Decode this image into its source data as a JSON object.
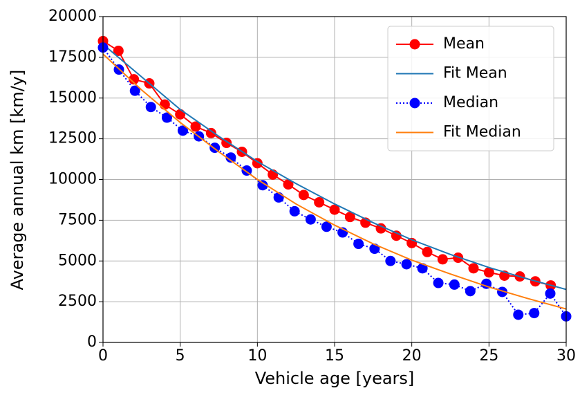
{
  "chart_data": {
    "type": "line",
    "x_label": "Vehicle age [years]",
    "y_label": "Average annual km [km/y]",
    "xlim": [
      0,
      30
    ],
    "ylim": [
      0,
      20000
    ],
    "xticks": [
      0,
      5,
      10,
      15,
      20,
      25,
      30
    ],
    "yticks": [
      0,
      2500,
      5000,
      7500,
      10000,
      12500,
      15000,
      17500,
      20000
    ],
    "grid": true,
    "legend": "upper right",
    "series": [
      {
        "name": "Mean",
        "color": "#ff0000",
        "linestyle": "solid",
        "marker": "circle",
        "x": [
          0,
          1,
          2,
          3,
          4,
          5,
          6,
          7,
          8,
          9,
          10,
          11,
          12,
          13,
          14,
          15,
          16,
          17,
          18,
          19,
          20,
          21,
          22,
          23,
          24,
          25,
          26,
          27,
          28,
          29
        ],
        "values": [
          18500,
          17900,
          16150,
          15900,
          14600,
          14000,
          13250,
          12850,
          12250,
          11700,
          11000,
          10300,
          9700,
          9050,
          8600,
          8150,
          7700,
          7350,
          7000,
          6550,
          6100,
          5550,
          5100,
          5200,
          4550,
          4300,
          4100,
          4050,
          3750,
          3500
        ]
      },
      {
        "name": "Fit Mean",
        "color": "#1f77b4",
        "linestyle": "solid",
        "marker": "none",
        "x": [
          0,
          2.5,
          5,
          7.5,
          10,
          12.5,
          15,
          17.5,
          20,
          22.5,
          25,
          27.5,
          30
        ],
        "values": [
          18300,
          16300,
          14300,
          12650,
          11100,
          9750,
          8500,
          7350,
          6300,
          5400,
          4600,
          3900,
          3250
        ]
      },
      {
        "name": "Median",
        "color": "#0000ff",
        "linestyle": "dotted",
        "marker": "circle",
        "x": [
          0,
          1.03,
          2.07,
          3.1,
          4.14,
          5.17,
          6.21,
          7.24,
          8.28,
          9.31,
          10.34,
          11.38,
          12.41,
          13.45,
          14.48,
          15.52,
          16.55,
          17.59,
          18.62,
          19.66,
          20.69,
          21.72,
          22.76,
          23.79,
          24.83,
          25.86,
          26.9,
          27.93,
          28.97,
          30
        ],
        "values": [
          18100,
          16750,
          15450,
          14450,
          13800,
          13000,
          12650,
          11950,
          11350,
          10550,
          9650,
          8900,
          8050,
          7550,
          7100,
          6750,
          6050,
          5750,
          5000,
          4800,
          4550,
          3650,
          3550,
          3150,
          3600,
          3100,
          1700,
          1800,
          3000,
          1600
        ]
      },
      {
        "name": "Fit Median",
        "color": "#ff7f0e",
        "linestyle": "solid",
        "marker": "none",
        "x": [
          0,
          2.5,
          5,
          7.5,
          10,
          12.5,
          15,
          17.5,
          20,
          22.5,
          25,
          27.5,
          30
        ],
        "values": [
          17700,
          15500,
          13500,
          11700,
          10000,
          8500,
          7200,
          6050,
          5050,
          4200,
          3400,
          2700,
          2050
        ]
      }
    ]
  }
}
